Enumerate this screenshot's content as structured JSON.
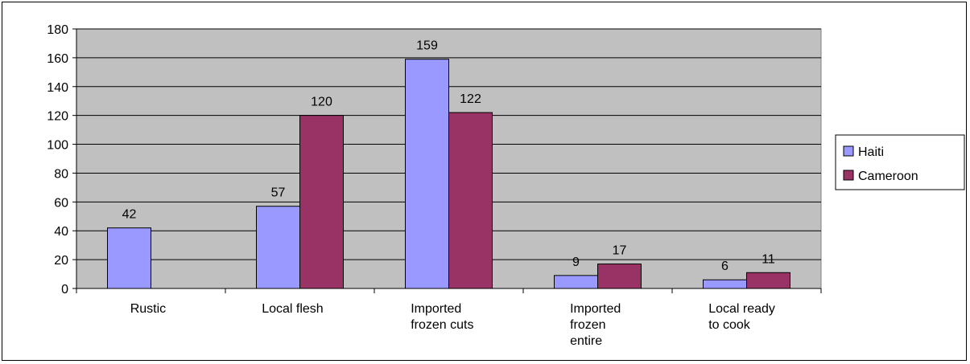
{
  "chart_data": {
    "type": "bar",
    "categories": [
      [
        "Rustic"
      ],
      [
        "Local flesh"
      ],
      [
        "Imported",
        "frozen cuts"
      ],
      [
        "Imported",
        "frozen",
        "entire"
      ],
      [
        "Local ready",
        "to cook"
      ]
    ],
    "series": [
      {
        "name": "Haiti",
        "values": [
          42,
          57,
          159,
          9,
          6
        ],
        "color": "#9999ff"
      },
      {
        "name": "Cameroon",
        "values": [
          null,
          120,
          122,
          17,
          11
        ],
        "color": "#993366"
      }
    ],
    "ylim": [
      0,
      180
    ],
    "yticks": [
      0,
      20,
      40,
      60,
      80,
      100,
      120,
      140,
      160,
      180
    ],
    "grid": true,
    "plot_background": "#c0c0c0",
    "legend_position": "right",
    "title": "",
    "xlabel": "",
    "ylabel": ""
  }
}
